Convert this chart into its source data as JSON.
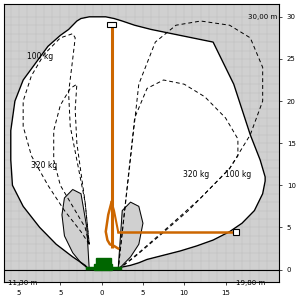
{
  "xlim": [
    -11.8,
    21.5
  ],
  "ylim": [
    -1.5,
    31.5
  ],
  "xlabel_left": "11,30 m",
  "xlabel_right": "19,80 m",
  "ylabel_top": "30,00 m",
  "grid_color": "#bbbbbb",
  "bg_color": "#d0d0d0",
  "crane_color": "#cc6600",
  "base_color": "#006600",
  "label_100kg_left": "100 kg",
  "label_320kg_left": "320 kg",
  "label_320kg_right": "320 kg",
  "label_100kg_right": "100 kg"
}
